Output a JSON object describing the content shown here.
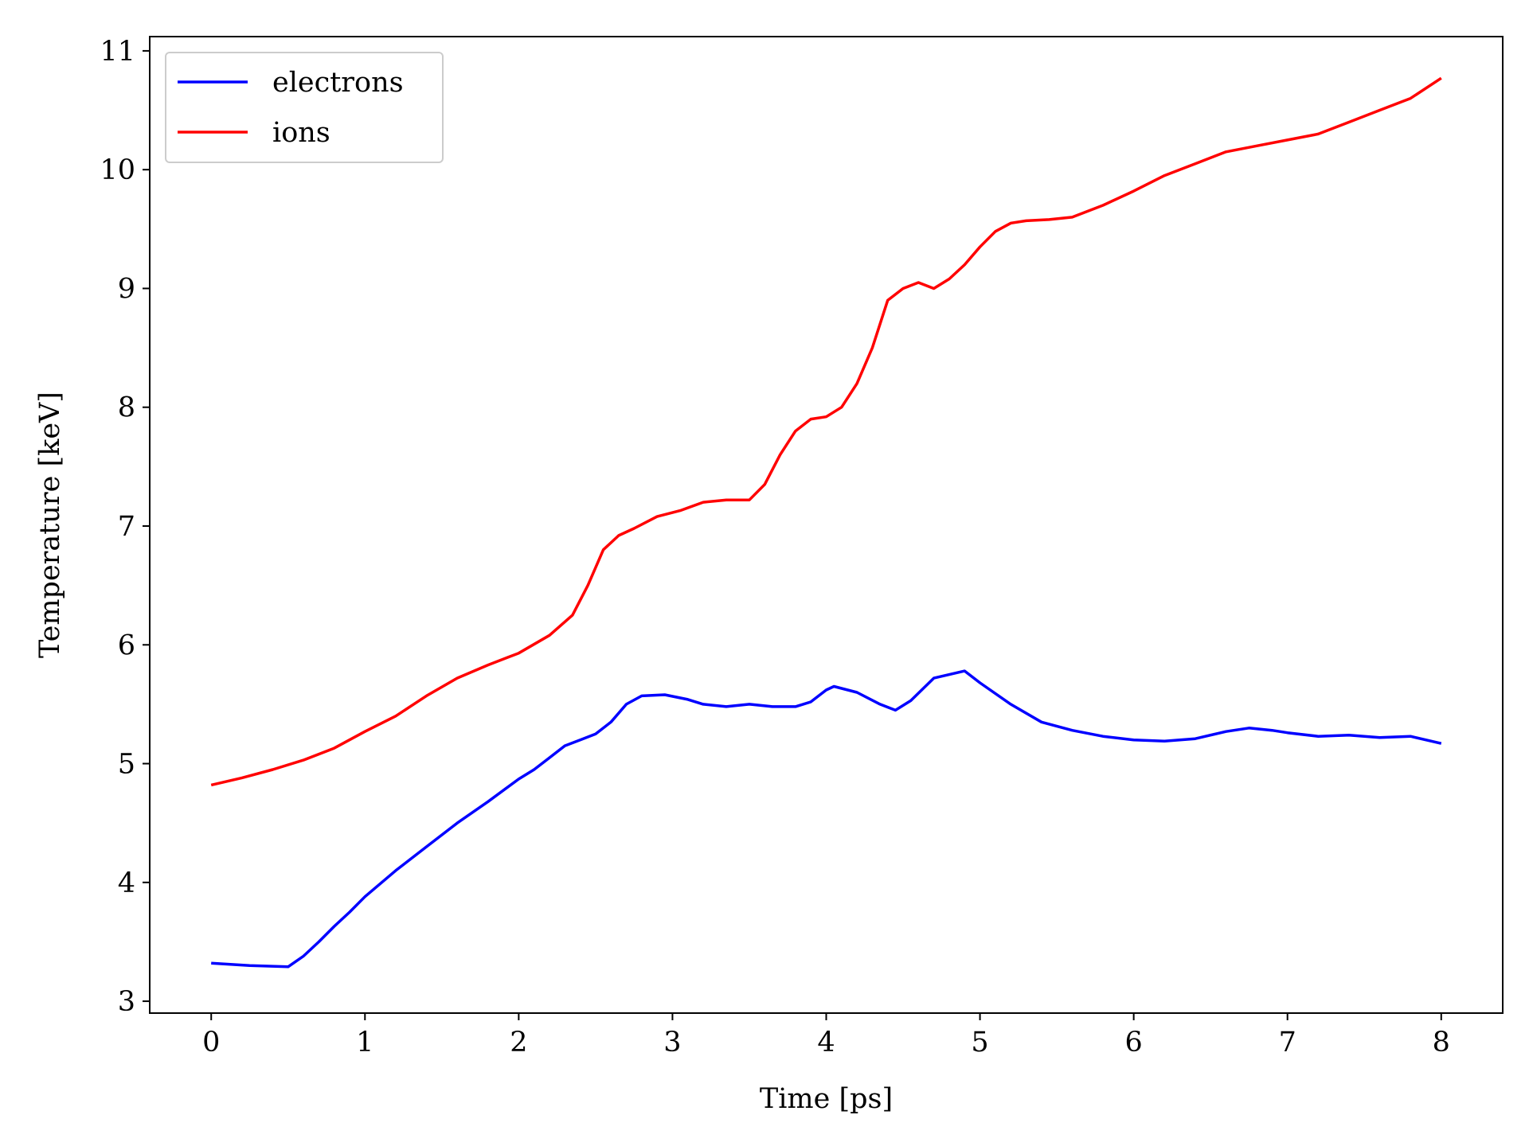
{
  "chart_data": {
    "type": "line",
    "xlabel": "Time [ps]",
    "ylabel": "Temperature [keV]",
    "xlim": [
      -0.4,
      8.4
    ],
    "ylim": [
      2.9,
      11.12
    ],
    "xticks": [
      0,
      1,
      2,
      3,
      4,
      5,
      6,
      7,
      8
    ],
    "yticks": [
      3,
      4,
      5,
      6,
      7,
      8,
      9,
      10,
      11
    ],
    "grid": false,
    "legend": "upper left",
    "series": [
      {
        "name": "electrons",
        "color": "#0000ff",
        "x": [
          0.0,
          0.25,
          0.5,
          0.6,
          0.7,
          0.8,
          0.9,
          1.0,
          1.2,
          1.4,
          1.6,
          1.8,
          2.0,
          2.1,
          2.2,
          2.3,
          2.4,
          2.5,
          2.6,
          2.7,
          2.8,
          2.95,
          3.1,
          3.2,
          3.35,
          3.5,
          3.65,
          3.8,
          3.9,
          4.0,
          4.05,
          4.2,
          4.35,
          4.45,
          4.55,
          4.7,
          4.8,
          4.9,
          5.0,
          5.2,
          5.4,
          5.6,
          5.8,
          6.0,
          6.2,
          6.4,
          6.6,
          6.75,
          6.9,
          7.0,
          7.2,
          7.4,
          7.6,
          7.8,
          8.0
        ],
        "values": [
          3.32,
          3.3,
          3.29,
          3.38,
          3.5,
          3.63,
          3.75,
          3.88,
          4.1,
          4.3,
          4.5,
          4.68,
          4.87,
          4.95,
          5.05,
          5.15,
          5.2,
          5.25,
          5.35,
          5.5,
          5.57,
          5.58,
          5.54,
          5.5,
          5.48,
          5.5,
          5.48,
          5.48,
          5.52,
          5.62,
          5.65,
          5.6,
          5.5,
          5.45,
          5.53,
          5.72,
          5.75,
          5.78,
          5.68,
          5.5,
          5.35,
          5.28,
          5.23,
          5.2,
          5.19,
          5.21,
          5.27,
          5.3,
          5.28,
          5.26,
          5.23,
          5.24,
          5.22,
          5.23,
          5.17
        ]
      },
      {
        "name": "ions",
        "color": "#ff0000",
        "x": [
          0.0,
          0.2,
          0.4,
          0.6,
          0.8,
          1.0,
          1.2,
          1.4,
          1.6,
          1.8,
          2.0,
          2.2,
          2.35,
          2.45,
          2.55,
          2.65,
          2.75,
          2.9,
          3.05,
          3.2,
          3.35,
          3.5,
          3.6,
          3.7,
          3.8,
          3.9,
          4.0,
          4.1,
          4.2,
          4.3,
          4.4,
          4.5,
          4.6,
          4.7,
          4.8,
          4.9,
          5.0,
          5.1,
          5.2,
          5.3,
          5.45,
          5.6,
          5.8,
          6.0,
          6.2,
          6.4,
          6.6,
          6.8,
          7.0,
          7.2,
          7.4,
          7.6,
          7.8,
          8.0
        ],
        "values": [
          4.82,
          4.88,
          4.95,
          5.03,
          5.13,
          5.27,
          5.4,
          5.57,
          5.72,
          5.83,
          5.93,
          6.08,
          6.25,
          6.5,
          6.8,
          6.92,
          6.98,
          7.08,
          7.13,
          7.2,
          7.22,
          7.22,
          7.35,
          7.6,
          7.8,
          7.9,
          7.92,
          8.0,
          8.2,
          8.5,
          8.9,
          9.0,
          9.05,
          9.0,
          9.08,
          9.2,
          9.35,
          9.48,
          9.55,
          9.57,
          9.58,
          9.6,
          9.7,
          9.82,
          9.95,
          10.05,
          10.15,
          10.2,
          10.25,
          10.3,
          10.4,
          10.5,
          10.6,
          10.77
        ]
      }
    ]
  }
}
